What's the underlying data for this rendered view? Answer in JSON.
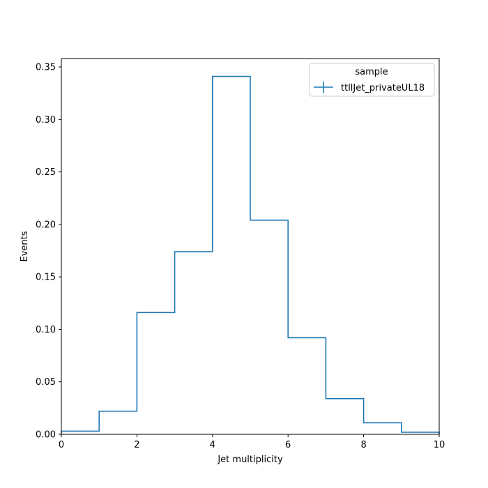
{
  "chart_data": {
    "type": "histogram",
    "xlabel": "Jet multiplicity",
    "ylabel": "Events",
    "xlim": [
      0,
      10
    ],
    "ylim": [
      0,
      0.358
    ],
    "x_ticks": [
      0,
      2,
      4,
      6,
      8,
      10
    ],
    "y_ticks": [
      0.0,
      0.05,
      0.1,
      0.15,
      0.2,
      0.25,
      0.3,
      0.35
    ],
    "x_tick_labels": [
      "0",
      "2",
      "4",
      "6",
      "8",
      "10"
    ],
    "y_tick_labels": [
      "0.00",
      "0.05",
      "0.10",
      "0.15",
      "0.20",
      "0.25",
      "0.30",
      "0.35"
    ],
    "bin_edges": [
      0,
      1,
      2,
      3,
      4,
      5,
      6,
      7,
      8,
      9,
      10
    ],
    "series": [
      {
        "name": "ttllJet_privateUL18",
        "color": "#1f77b4",
        "values": [
          0.003,
          0.022,
          0.116,
          0.174,
          0.341,
          0.204,
          0.092,
          0.034,
          0.011,
          0.002
        ]
      }
    ],
    "legend": {
      "title": "sample",
      "position": "top-right"
    },
    "grid": false
  }
}
